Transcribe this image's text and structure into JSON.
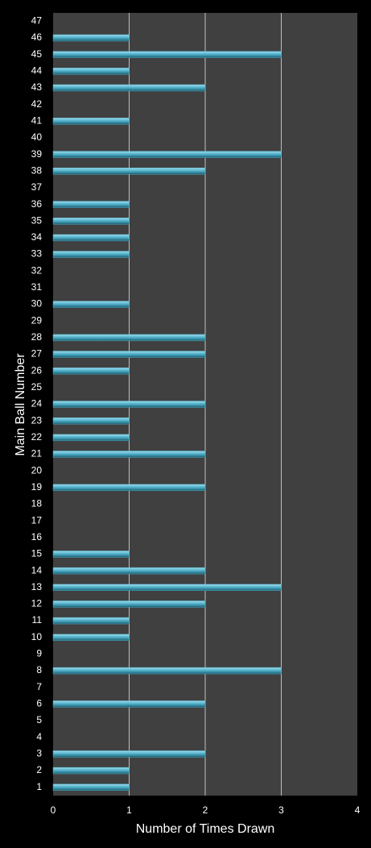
{
  "chart_data": {
    "type": "barh",
    "xlabel": "Number of Times Drawn",
    "ylabel": "Main Ball Number",
    "categories": [
      "1",
      "2",
      "3",
      "4",
      "5",
      "6",
      "7",
      "8",
      "9",
      "10",
      "11",
      "12",
      "13",
      "14",
      "15",
      "16",
      "17",
      "18",
      "19",
      "20",
      "21",
      "22",
      "23",
      "24",
      "25",
      "26",
      "27",
      "28",
      "29",
      "30",
      "31",
      "32",
      "33",
      "34",
      "35",
      "36",
      "37",
      "38",
      "39",
      "40",
      "41",
      "42",
      "43",
      "44",
      "45",
      "46",
      "47"
    ],
    "values": [
      1,
      1,
      2,
      0,
      0,
      2,
      0,
      3,
      0,
      1,
      1,
      2,
      3,
      2,
      1,
      0,
      0,
      0,
      2,
      0,
      2,
      1,
      1,
      2,
      0,
      1,
      2,
      2,
      0,
      1,
      0,
      0,
      1,
      1,
      1,
      1,
      0,
      2,
      3,
      0,
      1,
      0,
      2,
      1,
      3,
      1,
      0
    ],
    "color": "#4bacc6",
    "xlim": [
      0,
      4
    ],
    "xticks": [
      0,
      1,
      2,
      3,
      4
    ],
    "grid": true
  }
}
